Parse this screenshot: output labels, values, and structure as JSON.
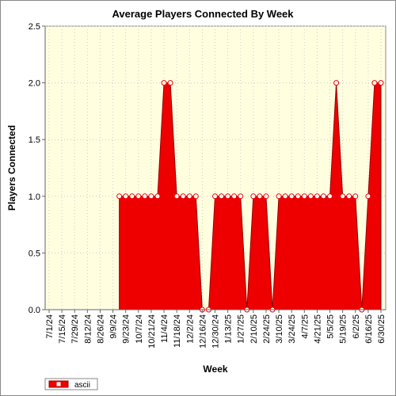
{
  "chart_data": {
    "type": "area",
    "title": "Average Players Connected By Week",
    "x_label": "Week",
    "y_label": "Players Connected",
    "categories": [
      "7/1/24",
      null,
      "7/15/24",
      null,
      "7/29/24",
      null,
      "8/12/24",
      null,
      "8/26/24",
      null,
      "9/9/24",
      null,
      "9/23/24",
      null,
      "10/7/24",
      null,
      "10/21/24",
      null,
      "11/4/24",
      null,
      "11/18/24",
      null,
      "12/2/24",
      null,
      "12/16/24",
      null,
      "12/30/24",
      null,
      "1/13/25",
      null,
      "1/27/25",
      null,
      "2/10/25",
      null,
      "2/24/25",
      null,
      "3/10/25",
      null,
      "3/24/25",
      null,
      "4/7/25",
      null,
      "4/21/25",
      null,
      "5/5/25",
      null,
      "5/19/25",
      null,
      "6/2/25",
      null,
      "6/16/25",
      null,
      "6/30/25"
    ],
    "series": [
      {
        "name": "ascii",
        "color": "#ee0000",
        "values": [
          null,
          null,
          null,
          null,
          null,
          null,
          null,
          null,
          null,
          null,
          null,
          1,
          1,
          1,
          1,
          1,
          1,
          1,
          2,
          2,
          1,
          1,
          1,
          1,
          0,
          0,
          1,
          1,
          1,
          1,
          1,
          0,
          1,
          1,
          1,
          0,
          1,
          1,
          1,
          1,
          1,
          1,
          1,
          1,
          1,
          2,
          1,
          1,
          1,
          0,
          1,
          2,
          2
        ]
      }
    ],
    "ylim": [
      0,
      2.5
    ],
    "yticks": [
      {
        "value": 0,
        "label": "0.0"
      },
      {
        "value": 0.5,
        "label": "0.5"
      },
      {
        "value": 1,
        "label": "1.0"
      },
      {
        "value": 1.5,
        "label": "1.5"
      },
      {
        "value": 2,
        "label": "2.0"
      },
      {
        "value": 2.5,
        "label": "2.5"
      }
    ],
    "grid": true,
    "legend": "bottom-left"
  }
}
